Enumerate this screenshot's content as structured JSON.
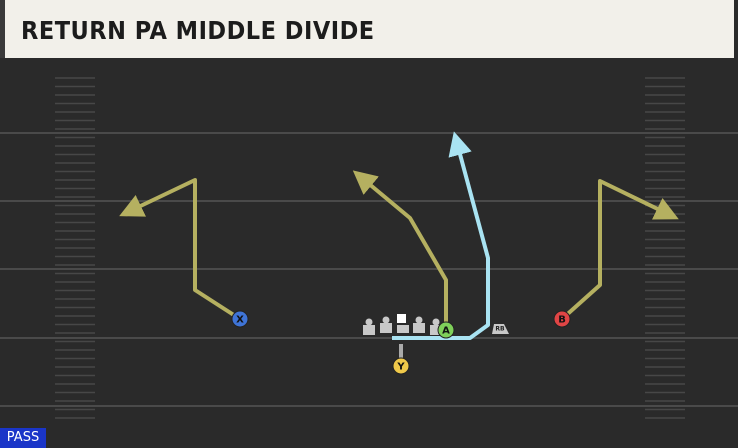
{
  "header": {
    "title": "RETURN PA MIDDLE DIVIDE"
  },
  "players": [
    {
      "label": "X"
    },
    {
      "label": "A"
    },
    {
      "label": "B"
    },
    {
      "label": "Y"
    },
    {
      "label": "RB"
    }
  ],
  "footer": {
    "play_type": "PASS"
  }
}
